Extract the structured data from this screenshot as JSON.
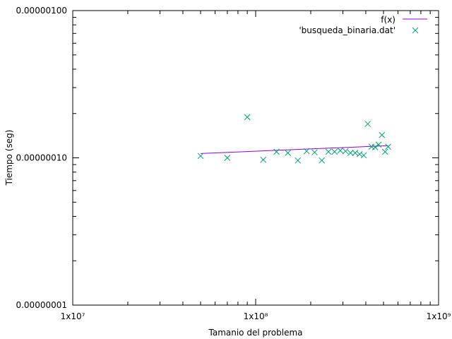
{
  "chart_data": {
    "type": "scatter",
    "title": "",
    "xlabel": "Tamanio del problema",
    "ylabel": "Tiempo (seg)",
    "x_scale": "log",
    "y_scale": "log",
    "xlim": [
      10000000,
      1000000000
    ],
    "ylim": [
      1e-08,
      1e-06
    ],
    "x_ticks": [
      {
        "value": 10000000,
        "label": "1x10⁷"
      },
      {
        "value": 100000000,
        "label": "1x10⁸"
      },
      {
        "value": 1000000000,
        "label": "1x10⁹"
      }
    ],
    "y_ticks": [
      {
        "value": 1e-08,
        "label": "0.00000001"
      },
      {
        "value": 1e-07,
        "label": "0.00000010"
      },
      {
        "value": 1e-06,
        "label": "0.00000100"
      }
    ],
    "grid": false,
    "legend_position": "top-right",
    "series": [
      {
        "name": "f(x)",
        "kind": "line",
        "color": "#9400d3",
        "x": [
          50000000,
          530000000
        ],
        "y": [
          1.07e-07,
          1.21e-07
        ]
      },
      {
        "name": "'busqueda_binaria.dat'",
        "kind": "scatter",
        "marker": "x",
        "color": "#009e73",
        "x": [
          50000000,
          70000000,
          90000000,
          110000000,
          130000000,
          150000000,
          170000000,
          190000000,
          210000000,
          230000000,
          250000000,
          270000000,
          290000000,
          310000000,
          330000000,
          350000000,
          370000000,
          390000000,
          410000000,
          430000000,
          450000000,
          470000000,
          490000000,
          510000000,
          530000000
        ],
        "y": [
          1.03e-07,
          1e-07,
          1.89e-07,
          9.7e-08,
          1.1e-07,
          1.08e-07,
          9.6e-08,
          1.11e-07,
          1.09e-07,
          9.6e-08,
          1.1e-07,
          1.1e-07,
          1.12e-07,
          1.11e-07,
          1.08e-07,
          1.08e-07,
          1.06e-07,
          1.04e-07,
          1.7e-07,
          1.19e-07,
          1.18e-07,
          1.23e-07,
          1.43e-07,
          1.1e-07,
          1.19e-07
        ]
      }
    ]
  }
}
